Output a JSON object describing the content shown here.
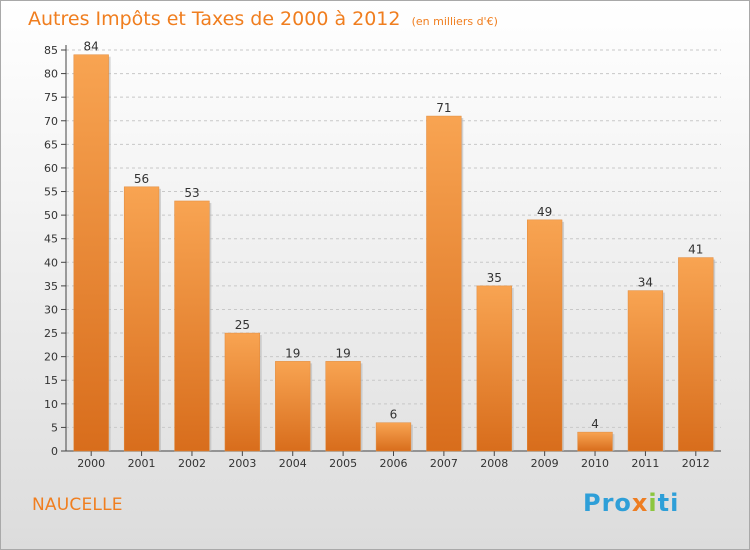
{
  "title": "Autres Impôts et Taxes de 2000 à 2012",
  "subtitle": "(en milliers d'€)",
  "commune": "NAUCELLE",
  "logo": {
    "parts": [
      "Pro",
      "x",
      "i",
      "ti"
    ],
    "colors": [
      "#2e9fd8",
      "#ee7d21",
      "#8cc63e",
      "#2e9fd8"
    ]
  },
  "colors": {
    "bar_light": "#f8a452",
    "bar_dark": "#d86d1c",
    "title": "#f07e1f",
    "grid": "#c8c8c8"
  },
  "chart_data": {
    "type": "bar",
    "title": "Autres Impôts et Taxes de 2000 à 2012",
    "subtitle": "(en milliers d'€)",
    "xlabel": "",
    "ylabel": "",
    "categories": [
      "2000",
      "2001",
      "2002",
      "2003",
      "2004",
      "2005",
      "2006",
      "2007",
      "2008",
      "2009",
      "2010",
      "2011",
      "2012"
    ],
    "values": [
      84,
      56,
      53,
      25,
      19,
      19,
      6,
      71,
      35,
      49,
      4,
      34,
      41
    ],
    "ylim": [
      0,
      85
    ],
    "yticks": [
      0,
      5,
      10,
      15,
      20,
      25,
      30,
      35,
      40,
      45,
      50,
      55,
      60,
      65,
      70,
      75,
      80,
      85
    ],
    "grid": true,
    "data_labels": true
  }
}
